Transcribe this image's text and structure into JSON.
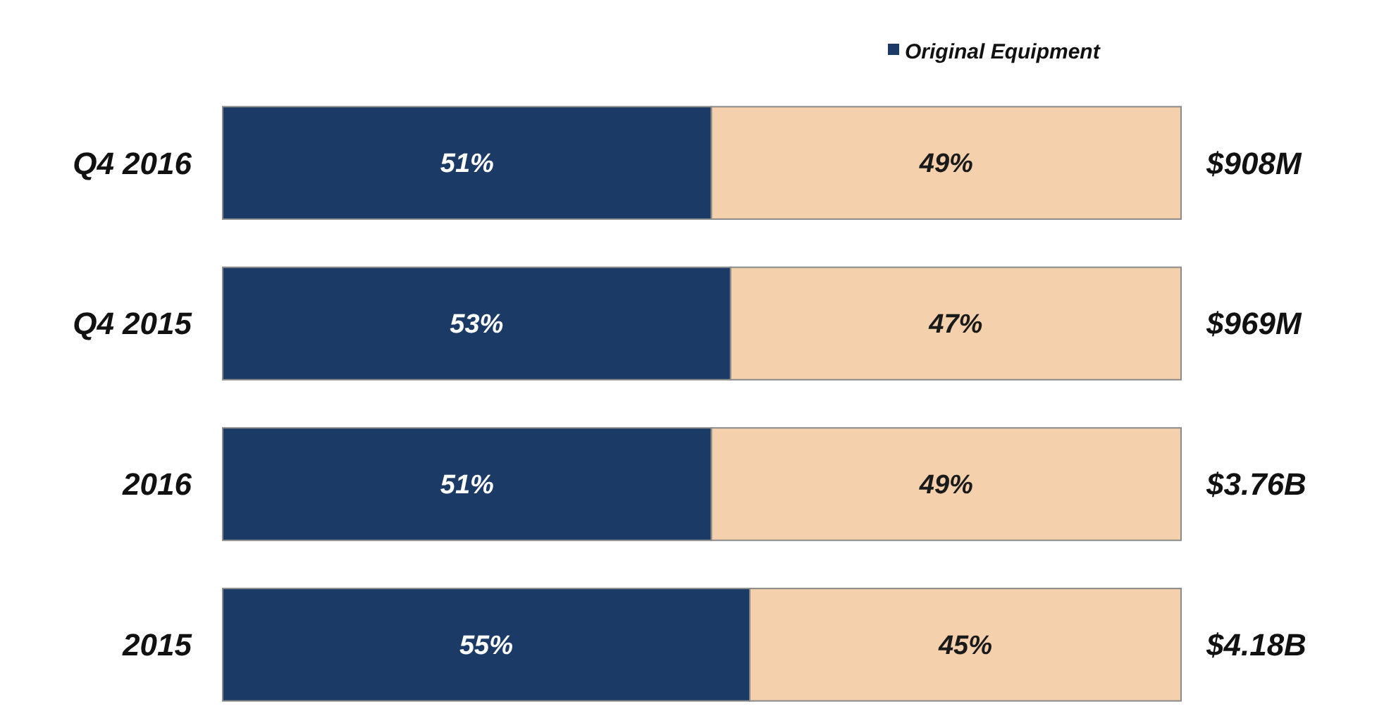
{
  "chart_data": {
    "type": "bar",
    "orientation": "horizontal",
    "stacked": true,
    "categories": [
      "Q4 2016",
      "Q4 2015",
      "2016",
      "2015"
    ],
    "series": [
      {
        "name": "Original Equipment",
        "color": "#1b3a66",
        "values": [
          51,
          53,
          51,
          55
        ],
        "value_labels": [
          "51%",
          "53%",
          "51%",
          "55%"
        ]
      },
      {
        "color": "#f4d0ac",
        "values": [
          49,
          47,
          49,
          45
        ],
        "value_labels": [
          "49%",
          "47%",
          "49%",
          "45%"
        ]
      }
    ],
    "xlim": [
      0,
      100
    ],
    "tick_labels": "y",
    "annotations": [
      "$908M",
      "$969M",
      "$3.76B",
      "$4.18B"
    ],
    "legend": "top right"
  }
}
